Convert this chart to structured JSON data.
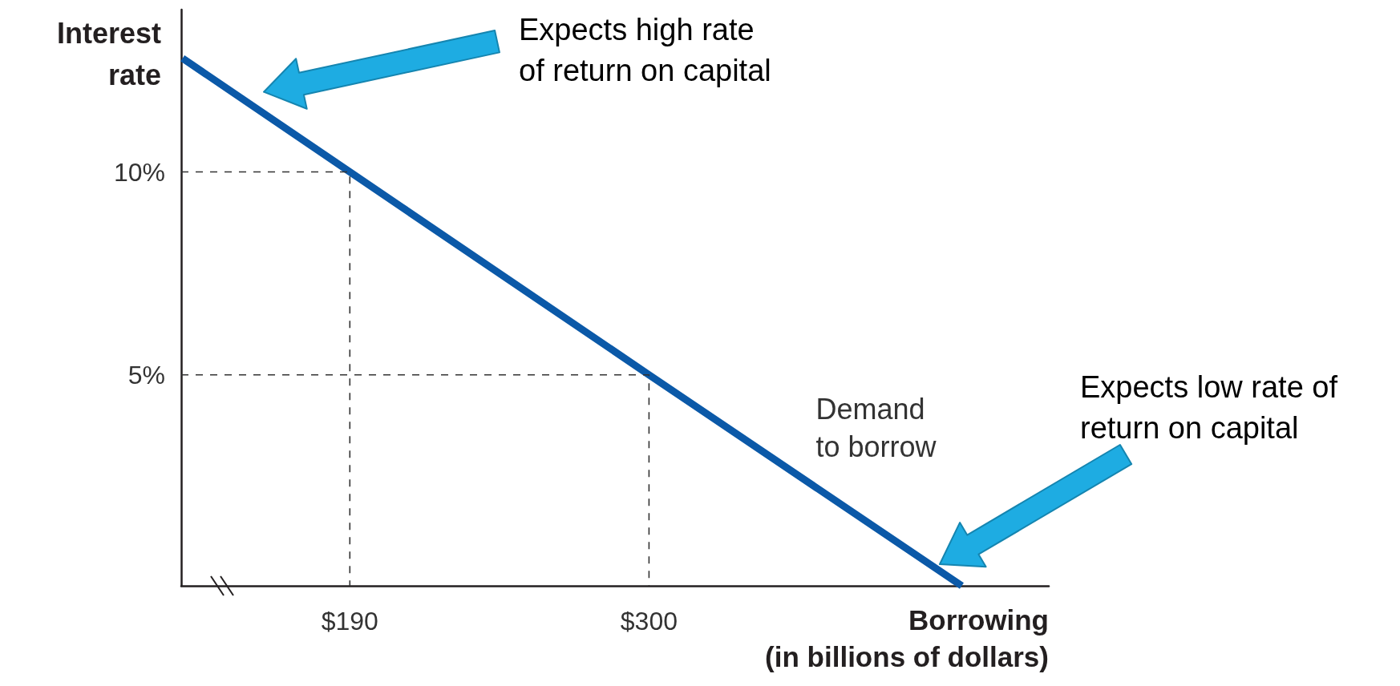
{
  "chart_data": {
    "type": "line",
    "xlabel": "Borrowing\n(in billions of dollars)",
    "ylabel": "Interest\nrate",
    "xlim": [
      128,
      447
    ],
    "ylim": [
      -0.2,
      14
    ],
    "xticks": [
      {
        "value": 190,
        "label": "$190"
      },
      {
        "value": 300,
        "label": "$300"
      }
    ],
    "yticks": [
      {
        "value": 5,
        "label": "5%"
      },
      {
        "value": 10,
        "label": "10%"
      }
    ],
    "marker": "none",
    "series": [
      {
        "name": "Demand to borrow",
        "color": "#0b59a8",
        "x": [
          128.5,
          190,
          300,
          415
        ],
        "values": [
          12.8,
          10,
          5,
          -0.2
        ]
      },
      {
        "color": "#333333",
        "line_style": "dashed",
        "x": [
          128,
          190,
          190
        ],
        "values": [
          10,
          10,
          -0.2
        ]
      },
      {
        "color": "#333333",
        "line_style": "dashed",
        "x": [
          128,
          300,
          300
        ],
        "values": [
          5,
          5,
          -0.2
        ]
      }
    ],
    "annotations": [
      "Expects high rate of return on capital",
      "Expects low rate of return on capital"
    ]
  }
}
